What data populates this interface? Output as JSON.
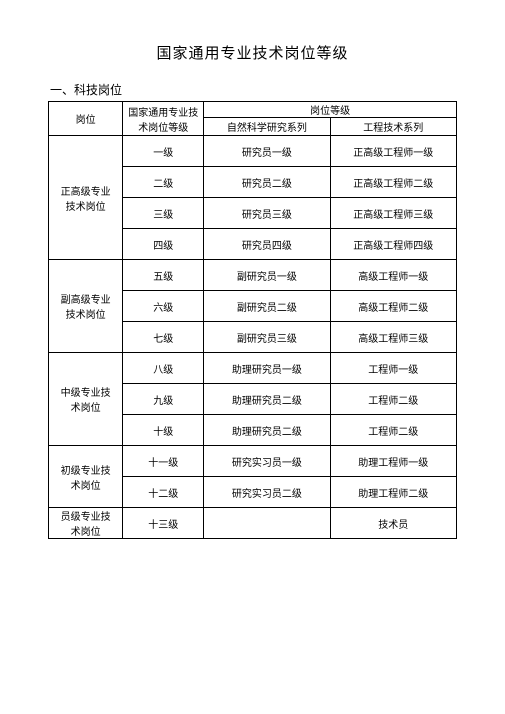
{
  "title": "国家通用专业技术岗位等级",
  "section_label": "一、科技岗位",
  "header": {
    "post": "岗位",
    "national_level": "国家通用专业技\n术岗位等级",
    "rank_group": "岗位等级",
    "series_a": "自然科学研究系列",
    "series_b": "工程技术系列"
  },
  "groups": [
    {
      "post": "正高级专业\n技术岗位",
      "rows": [
        {
          "level": "一级",
          "a": "研究员一级",
          "b": "正高级工程师一级"
        },
        {
          "level": "二级",
          "a": "研究员二级",
          "b": "正高级工程师二级"
        },
        {
          "level": "三级",
          "a": "研究员三级",
          "b": "正高级工程师三级"
        },
        {
          "level": "四级",
          "a": "研究员四级",
          "b": "正高级工程师四级"
        }
      ]
    },
    {
      "post": "副高级专业\n技术岗位",
      "rows": [
        {
          "level": "五级",
          "a": "副研究员一级",
          "b": "高级工程师一级"
        },
        {
          "level": "六级",
          "a": "副研究员二级",
          "b": "高级工程师二级"
        },
        {
          "level": "七级",
          "a": "副研究员三级",
          "b": "高级工程师三级"
        }
      ]
    },
    {
      "post": "中级专业技\n术岗位",
      "rows": [
        {
          "level": "八级",
          "a": "助理研究员一级",
          "b": "工程师一级"
        },
        {
          "level": "九级",
          "a": "助理研究员二级",
          "b": "工程师二级"
        },
        {
          "level": "十级",
          "a": "助理研究员二级",
          "b": "工程师二级"
        }
      ]
    },
    {
      "post": "初级专业技\n术岗位",
      "rows": [
        {
          "level": "十一级",
          "a": "研究实习员一级",
          "b": "助理工程师一级"
        },
        {
          "level": "十二级",
          "a": "研究实习员二级",
          "b": "助理工程师二级"
        }
      ]
    },
    {
      "post": "员级专业技\n术岗位",
      "rows": [
        {
          "level": "十三级",
          "a": "",
          "b": "技术员"
        }
      ]
    }
  ],
  "style": {
    "page_bg": "#ffffff",
    "text_color": "#000000",
    "border_color": "#000000",
    "title_fontsize": 15,
    "section_fontsize": 12,
    "cell_fontsize": 10
  }
}
